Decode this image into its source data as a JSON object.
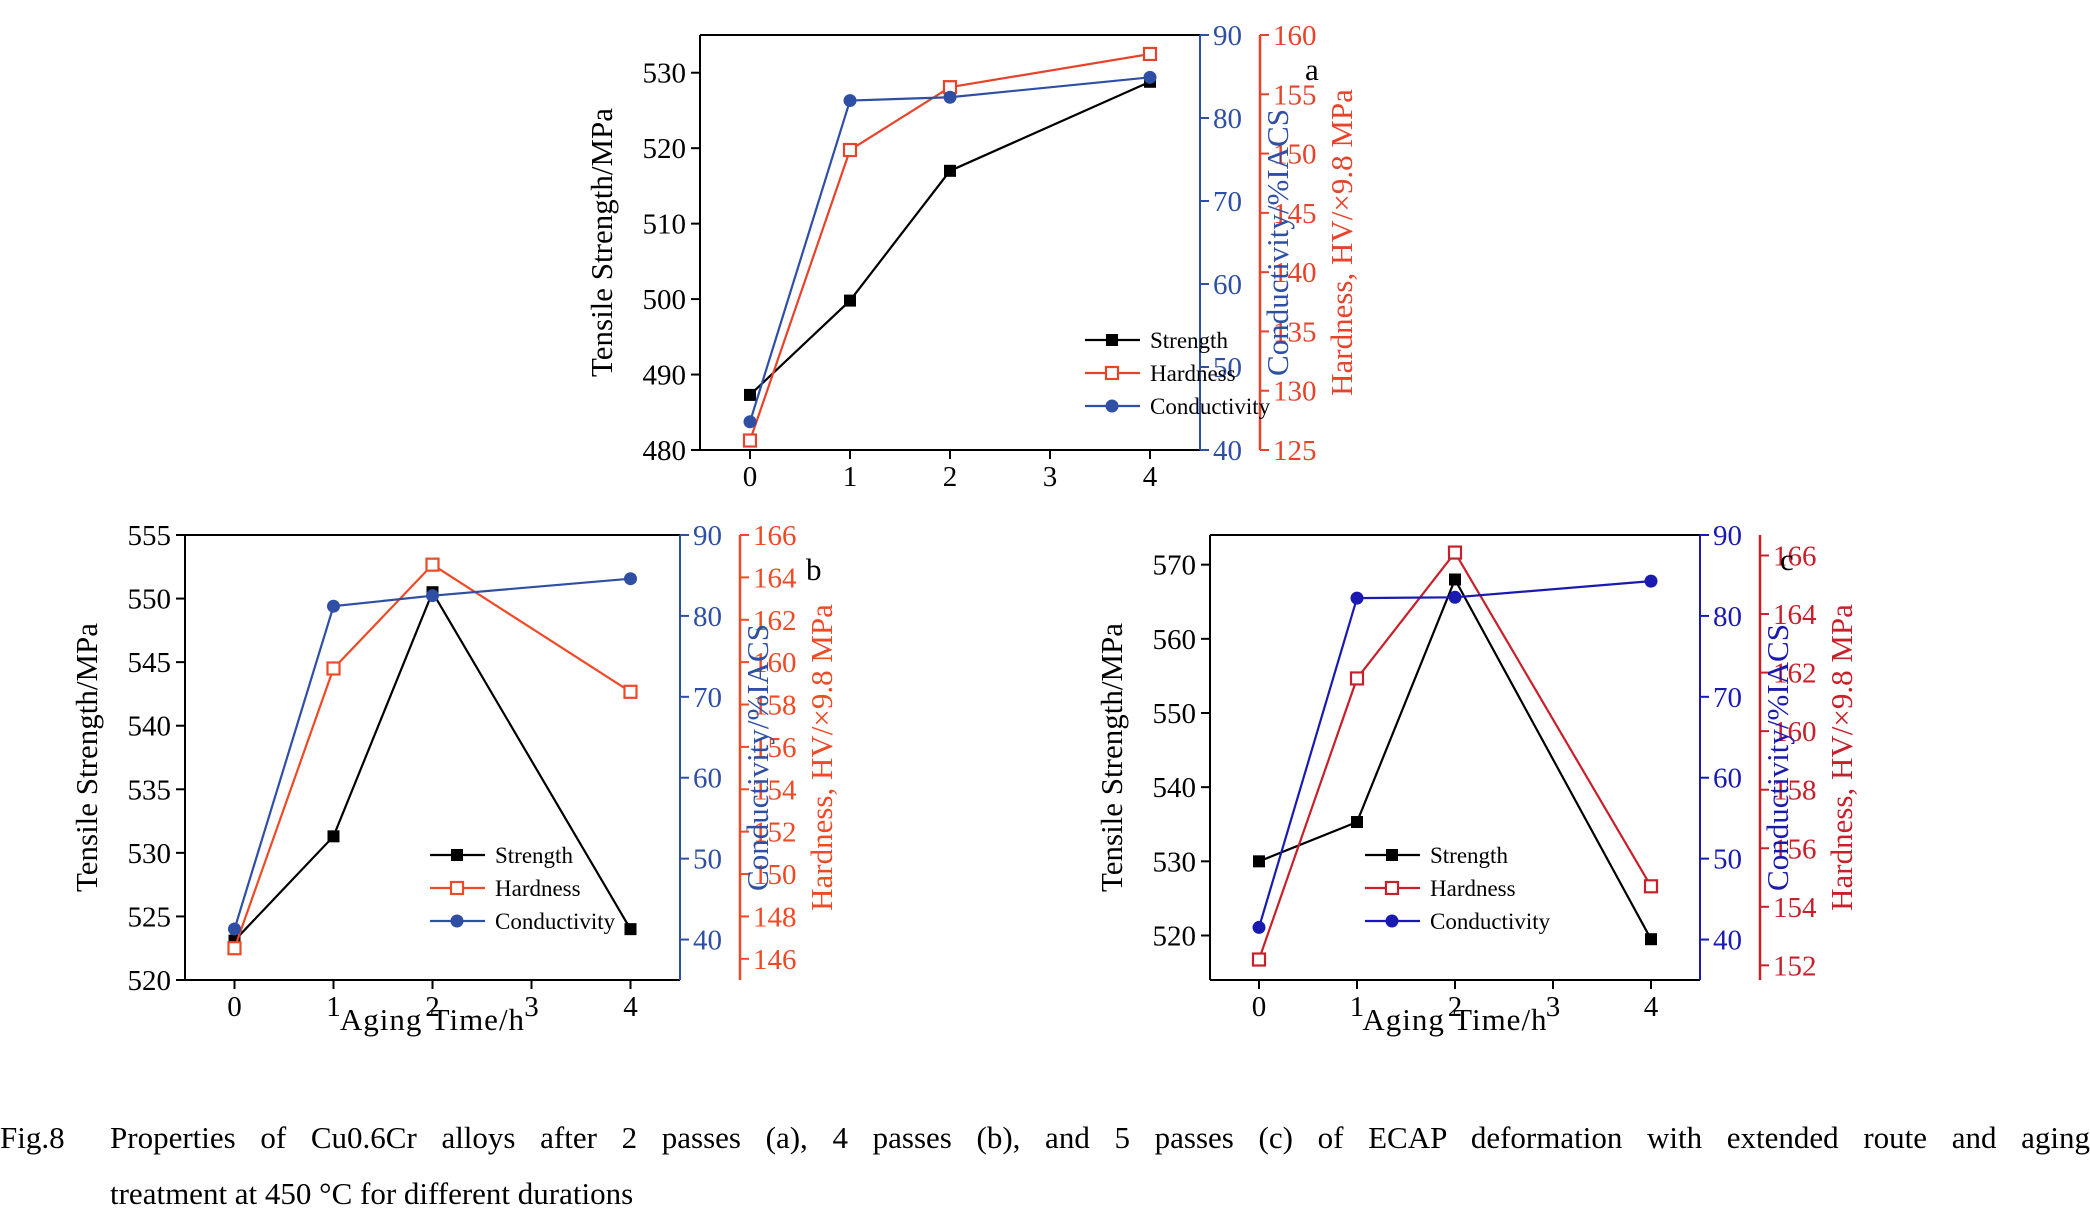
{
  "chart_data": [
    {
      "type": "line",
      "panel_label": "a",
      "x": [
        0,
        1,
        2,
        4
      ],
      "xticks": [
        0,
        1,
        2,
        3,
        4
      ],
      "xlabel": "",
      "xlim": [
        -0.5,
        4.5
      ],
      "ylabel_left": "Tensile Strength/MPa",
      "ylabel_right1": "Conductivity/%IACS",
      "ylabel_right2": "Hardness, HV/×9.8 MPa",
      "ylim_left": [
        480,
        535
      ],
      "ylim_right1": [
        40,
        90
      ],
      "ylim_right2": [
        125,
        160
      ],
      "yticks_left": [
        480,
        490,
        500,
        510,
        520,
        530
      ],
      "yticks_right1": [
        40,
        50,
        60,
        70,
        80,
        90
      ],
      "yticks_right2": [
        125,
        130,
        135,
        140,
        145,
        150,
        155,
        160
      ],
      "series": [
        {
          "name": "Strength",
          "axis": "left",
          "marker": "filled-square",
          "color": "#000000",
          "values": [
            487.3,
            499.8,
            517.0,
            528.8
          ]
        },
        {
          "name": "Hardness",
          "axis": "right2",
          "marker": "open-square",
          "color": "#e8432a",
          "values": [
            125.8,
            150.3,
            155.6,
            158.4
          ]
        },
        {
          "name": "Conductivity",
          "axis": "right1",
          "marker": "circle",
          "color": "#2e4fa3",
          "values": [
            43.4,
            82.1,
            82.5,
            84.9
          ]
        }
      ],
      "legend_position": "bottom-right"
    },
    {
      "type": "line",
      "panel_label": "b",
      "x": [
        0,
        1,
        2,
        4
      ],
      "xticks": [
        0,
        1,
        2,
        3,
        4
      ],
      "xlabel": "Aging Time/h",
      "xlim": [
        -0.5,
        4.5
      ],
      "ylabel_left": "Tensile Strength/MPa",
      "ylabel_right1": "Conductivity/%IACS",
      "ylabel_right2": "Hardness, HV/×9.8 MPa",
      "ylim_left": [
        520,
        555
      ],
      "ylim_right1": [
        35,
        90
      ],
      "ylim_right2": [
        145,
        166
      ],
      "yticks_left": [
        520,
        525,
        530,
        535,
        540,
        545,
        550,
        555
      ],
      "yticks_right1": [
        40,
        50,
        60,
        70,
        80,
        90
      ],
      "yticks_right2": [
        146,
        148,
        150,
        152,
        154,
        156,
        158,
        160,
        162,
        164,
        166
      ],
      "series": [
        {
          "name": "Strength",
          "axis": "left",
          "marker": "filled-square",
          "color": "#000000",
          "values": [
            523.1,
            531.3,
            550.5,
            524.0
          ]
        },
        {
          "name": "Hardness",
          "axis": "right2",
          "marker": "open-square",
          "color": "#ee4a26",
          "values": [
            146.5,
            159.7,
            164.6,
            158.6
          ]
        },
        {
          "name": "Conductivity",
          "axis": "right1",
          "marker": "circle",
          "color": "#2e4fa3",
          "values": [
            41.3,
            81.2,
            82.5,
            84.6
          ]
        }
      ],
      "legend_position": "bottom-center"
    },
    {
      "type": "line",
      "panel_label": "c",
      "x": [
        0,
        1,
        2,
        4
      ],
      "xticks": [
        0,
        1,
        2,
        3,
        4
      ],
      "xlabel": "Aging Time/h",
      "xlim": [
        -0.5,
        4.5
      ],
      "ylabel_left": "Tensile Strength/MPa",
      "ylabel_right1": "Conductivity/%IACS",
      "ylabel_right2": "Hardness, HV/×9.8 MPa",
      "ylim_left": [
        514,
        574
      ],
      "ylim_right1": [
        35,
        90
      ],
      "ylim_right2": [
        151.5,
        166.7
      ],
      "yticks_left": [
        520,
        530,
        540,
        550,
        560,
        570
      ],
      "yticks_right1": [
        40,
        50,
        60,
        70,
        80,
        90
      ],
      "yticks_right2": [
        152,
        154,
        156,
        158,
        160,
        162,
        164,
        166
      ],
      "series": [
        {
          "name": "Strength",
          "axis": "left",
          "marker": "filled-square",
          "color": "#000000",
          "values": [
            530.0,
            535.3,
            568.0,
            519.5
          ]
        },
        {
          "name": "Hardness",
          "axis": "right2",
          "marker": "open-square",
          "color": "#c8202a",
          "values": [
            152.2,
            161.8,
            166.1,
            154.7
          ]
        },
        {
          "name": "Conductivity",
          "axis": "right1",
          "marker": "circle",
          "color": "#1a1ab0",
          "values": [
            41.5,
            82.2,
            82.3,
            84.3
          ]
        }
      ],
      "legend_position": "bottom-center"
    }
  ],
  "caption": {
    "fig_num": "Fig.8",
    "line1": "Properties of Cu0.6Cr alloys after 2 passes (a), 4 passes (b), and 5 passes (c) of ECAP deformation with extended route and aging",
    "line2": "treatment at 450 °C for different durations"
  }
}
